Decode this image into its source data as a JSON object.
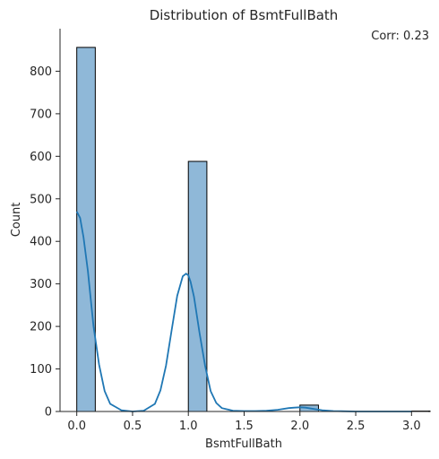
{
  "chart_data": {
    "type": "bar",
    "title": "Distribution of BsmtFullBath",
    "xlabel": "BsmtFullBath",
    "ylabel": "Count",
    "annotation": "Corr: 0.23",
    "xlim": [
      -0.15,
      3.15
    ],
    "ylim": [
      0,
      900
    ],
    "xticks": [
      "0.0",
      "0.5",
      "1.0",
      "1.5",
      "2.0",
      "2.5",
      "3.0"
    ],
    "yticks": [
      "0",
      "100",
      "200",
      "300",
      "400",
      "500",
      "600",
      "700",
      "800"
    ],
    "bar_color": "#8fb8d8",
    "bar_edge_color": "#000000",
    "kde_color": "#1f77b4",
    "bins": [
      {
        "start": 0.0,
        "end": 0.166,
        "count": 856
      },
      {
        "start": 1.0,
        "end": 1.166,
        "count": 588
      },
      {
        "start": 2.0,
        "end": 2.166,
        "count": 15
      },
      {
        "start": 3.0,
        "end": 3.166,
        "count": 1
      }
    ],
    "kde": {
      "x": [
        0.0,
        0.03,
        0.06,
        0.1,
        0.15,
        0.2,
        0.25,
        0.3,
        0.4,
        0.5,
        0.6,
        0.7,
        0.75,
        0.8,
        0.85,
        0.9,
        0.95,
        0.98,
        1.0,
        1.02,
        1.05,
        1.1,
        1.15,
        1.2,
        1.25,
        1.3,
        1.4,
        1.5,
        1.6,
        1.7,
        1.8,
        1.9,
        1.95,
        2.0,
        2.05,
        2.1,
        2.2,
        2.3,
        2.5,
        2.75,
        3.0
      ],
      "y": [
        470,
        455,
        410,
        330,
        200,
        110,
        48,
        18,
        3,
        0,
        2,
        18,
        50,
        108,
        190,
        272,
        318,
        324,
        320,
        305,
        270,
        185,
        108,
        48,
        20,
        8,
        2,
        1,
        1,
        2,
        4,
        8,
        9,
        10,
        9,
        7,
        3,
        1,
        0,
        0,
        0
      ]
    }
  }
}
